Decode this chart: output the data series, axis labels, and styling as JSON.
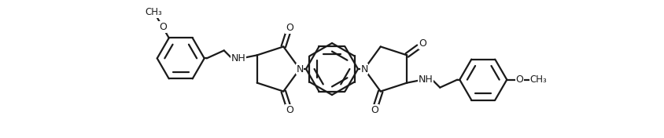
{
  "background_color": "#ffffff",
  "line_color": "#1a1a1a",
  "text_color": "#1a1a1a",
  "lw": 1.6,
  "figsize": [
    8.45,
    1.76
  ],
  "dpi": 100,
  "xlim": [
    0,
    845
  ],
  "ylim": [
    0,
    176
  ]
}
